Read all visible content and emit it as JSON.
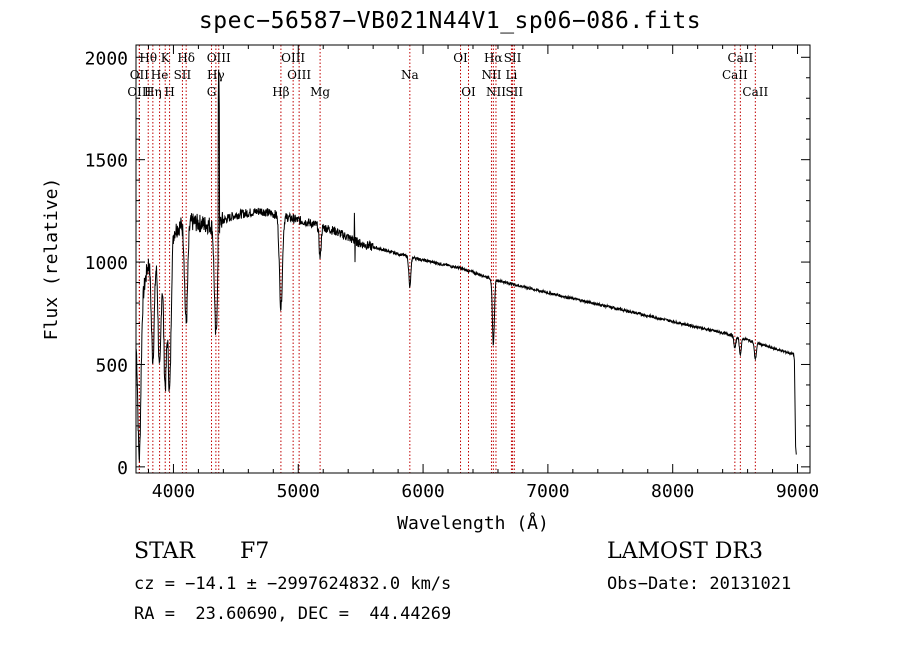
{
  "chart_data": {
    "type": "line",
    "title": "spec−56587−VB021N44V1_sp06−086.fits",
    "xlabel": "Wavelength (Å)",
    "ylabel": "Flux (relative)",
    "xlim": [
      3700,
      9100
    ],
    "ylim": [
      -30,
      2060
    ],
    "x_ticks": [
      4000,
      5000,
      6000,
      7000,
      8000,
      9000
    ],
    "y_ticks": [
      0,
      500,
      1000,
      1500,
      2000
    ],
    "spectral_lines": [
      {
        "label": "Hθ",
        "wavelength": 3798,
        "row": 1
      },
      {
        "label": "OII",
        "wavelength": 3727,
        "row": 2
      },
      {
        "label": "OIII",
        "wavelength": 3727,
        "row": 3
      },
      {
        "label": "Hη",
        "wavelength": 3835,
        "row": 3
      },
      {
        "label": "K",
        "wavelength": 3934,
        "row": 1
      },
      {
        "label": "He",
        "wavelength": 3889,
        "row": 2
      },
      {
        "label": "H",
        "wavelength": 3969,
        "row": 3
      },
      {
        "label": "Hδ",
        "wavelength": 4102,
        "row": 1
      },
      {
        "label": "SII",
        "wavelength": 4072,
        "row": 2
      },
      {
        "label": "OIII",
        "wavelength": 4363,
        "row": 1
      },
      {
        "label": "Hγ",
        "wavelength": 4340,
        "row": 2
      },
      {
        "label": "G",
        "wavelength": 4305,
        "row": 3
      },
      {
        "label": "OIII",
        "wavelength": 4959,
        "row": 1
      },
      {
        "label": "OIII",
        "wavelength": 5007,
        "row": 2
      },
      {
        "label": "Hβ",
        "wavelength": 4861,
        "row": 3
      },
      {
        "label": "Mg",
        "wavelength": 5175,
        "row": 3
      },
      {
        "label": "Na",
        "wavelength": 5894,
        "row": 2
      },
      {
        "label": "OI",
        "wavelength": 6300,
        "row": 1
      },
      {
        "label": "OI",
        "wavelength": 6364,
        "row": 3
      },
      {
        "label": "Hα",
        "wavelength": 6563,
        "row": 1
      },
      {
        "label": "NII",
        "wavelength": 6548,
        "row": 2
      },
      {
        "label": "NII",
        "wavelength": 6584,
        "row": 3
      },
      {
        "label": "SII",
        "wavelength": 6717,
        "row": 1
      },
      {
        "label": "Li",
        "wavelength": 6708,
        "row": 2
      },
      {
        "label": "SII",
        "wavelength": 6731,
        "row": 3
      },
      {
        "label": "CaII",
        "wavelength": 8542,
        "row": 1
      },
      {
        "label": "CaII",
        "wavelength": 8498,
        "row": 2
      },
      {
        "label": "CaII",
        "wavelength": 8662,
        "row": 3
      }
    ],
    "continuum": [
      [
        3700,
        650
      ],
      [
        3800,
        1000
      ],
      [
        3900,
        1080
      ],
      [
        4000,
        1150
      ],
      [
        4100,
        1200
      ],
      [
        4300,
        1180
      ],
      [
        4500,
        1230
      ],
      [
        4700,
        1250
      ],
      [
        4900,
        1220
      ],
      [
        5100,
        1190
      ],
      [
        5300,
        1150
      ],
      [
        5500,
        1090
      ],
      [
        5800,
        1040
      ],
      [
        6000,
        1010
      ],
      [
        6300,
        970
      ],
      [
        6600,
        910
      ],
      [
        7000,
        850
      ],
      [
        7500,
        780
      ],
      [
        8000,
        710
      ],
      [
        8500,
        640
      ],
      [
        8800,
        580
      ],
      [
        8970,
        550
      ]
    ],
    "absorption_features": [
      {
        "x": 3727,
        "depth": 700
      },
      {
        "x": 3835,
        "depth": 500
      },
      {
        "x": 3889,
        "depth": 600
      },
      {
        "x": 3934,
        "depth": 700
      },
      {
        "x": 3969,
        "depth": 750
      },
      {
        "x": 4102,
        "depth": 500
      },
      {
        "x": 4340,
        "depth": 550
      },
      {
        "x": 4861,
        "depth": 450
      },
      {
        "x": 5175,
        "depth": 150
      },
      {
        "x": 5894,
        "depth": 150
      },
      {
        "x": 6563,
        "depth": 320
      },
      {
        "x": 8498,
        "depth": 60
      },
      {
        "x": 8542,
        "depth": 80
      },
      {
        "x": 8662,
        "depth": 80
      }
    ],
    "emission_spikes": [
      {
        "x": 4363,
        "peak": 2000
      },
      {
        "x": 5450,
        "peak": 1270
      }
    ]
  },
  "footer": {
    "object_type": "STAR",
    "subclass": "F7",
    "survey": "LAMOST DR3",
    "redshift_line": "cz = −14.1 ± −2997624832.0 km/s",
    "obs_date": "Obs−Date: 20131021",
    "coords_line": "RA =  23.60690, DEC =  44.44269"
  }
}
